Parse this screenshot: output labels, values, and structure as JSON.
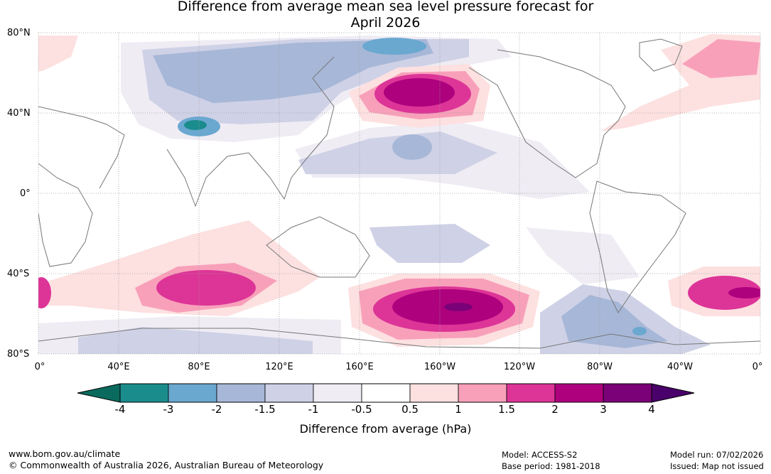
{
  "title": {
    "line1": "Difference from average mean sea level pressure forecast for",
    "line2": "April 2026"
  },
  "lat_labels": [
    "80°N",
    "40°N",
    "0°",
    "40°S",
    "80°S"
  ],
  "lon_labels": [
    "0°",
    "40°E",
    "80°E",
    "120°E",
    "160°E",
    "160°W",
    "120°W",
    "80°W",
    "40°W",
    "0°"
  ],
  "colorbar": {
    "ticks": [
      "-4",
      "-3",
      "-2",
      "-1.5",
      "-1",
      "-0.5",
      "0.5",
      "1",
      "1.5",
      "2",
      "3",
      "4"
    ],
    "colors": [
      "#1a8c8c",
      "#6aa8d0",
      "#a7b7d7",
      "#cfd1e6",
      "#efecf4",
      "#ffffff",
      "#fde0e0",
      "#f8a0ba",
      "#dd3497",
      "#ae017e",
      "#7a0177"
    ],
    "under_color": "#0b6a5e",
    "over_color": "#49006a",
    "title": "Difference from average (hPa)"
  },
  "footer": {
    "website": "www.bom.gov.au/climate",
    "copyright": "© Commonwealth of Australia 2026, Australian Bureau of Meteorology",
    "model": "Model: ACCESS-S2",
    "base_period": "Base period: 1981-2018",
    "model_run": "Model run: 07/02/2026",
    "issued": "Issued: Map not issued"
  }
}
